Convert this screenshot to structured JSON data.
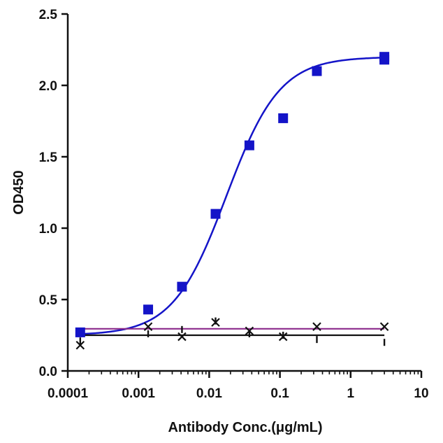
{
  "chart_data": {
    "type": "scatter",
    "title": "",
    "xlabel": "Antibody Conc.(μg/mL)",
    "ylabel": "OD450",
    "x_scale": "log",
    "xlim": [
      0.0001,
      10
    ],
    "ylim": [
      0,
      2.5
    ],
    "x_ticks": [
      0.0001,
      0.001,
      0.01,
      0.1,
      1,
      10
    ],
    "x_tick_labels": [
      "0.0001",
      "0.001",
      "0.01",
      "0.1",
      "1",
      "10"
    ],
    "y_ticks": [
      0,
      0.5,
      1,
      1.5,
      2,
      2.5
    ],
    "y_tick_labels": [
      "0.0",
      "0.5",
      "1.0",
      "1.5",
      "2.0",
      "2.5"
    ],
    "grid": false,
    "legend": "none",
    "series": [
      {
        "marker": "square",
        "color": "#1414c8",
        "fit": "sigmoid",
        "fit_params": {
          "bottom": 0.25,
          "top": 2.2,
          "ec50": 0.0175,
          "hill": 1.15
        },
        "points": [
          {
            "x": 0.00015,
            "y": 0.27
          },
          {
            "x": 0.00137,
            "y": 0.43
          },
          {
            "x": 0.00412,
            "y": 0.59
          },
          {
            "x": 0.0123,
            "y": 1.1
          },
          {
            "x": 0.037,
            "y": 1.58
          },
          {
            "x": 0.111,
            "y": 1.77
          },
          {
            "x": 0.333,
            "y": 2.1
          },
          {
            "x": 3.0,
            "y": 2.2
          },
          {
            "x": 3.0,
            "y": 2.18
          }
        ]
      },
      {
        "marker": "x",
        "color": "#111111",
        "line_color": "#8b2a8b",
        "fit": "flat",
        "fit_value": 0.295,
        "points": [
          {
            "x": 0.00015,
            "y": 0.18
          },
          {
            "x": 0.00137,
            "y": 0.31
          },
          {
            "x": 0.00412,
            "y": 0.24
          },
          {
            "x": 0.0123,
            "y": 0.34
          },
          {
            "x": 0.037,
            "y": 0.28
          },
          {
            "x": 0.111,
            "y": 0.24
          },
          {
            "x": 0.333,
            "y": 0.31
          },
          {
            "x": 3.0,
            "y": 0.31
          }
        ]
      },
      {
        "marker": "tick",
        "color": "#111111",
        "line_color": "#111111",
        "fit": "flat",
        "fit_value": 0.25,
        "points": [
          {
            "x": 0.00015,
            "y": 0.21
          },
          {
            "x": 0.00137,
            "y": 0.26
          },
          {
            "x": 0.00412,
            "y": 0.29
          },
          {
            "x": 0.0123,
            "y": 0.35
          },
          {
            "x": 0.037,
            "y": 0.26
          },
          {
            "x": 0.111,
            "y": 0.25
          },
          {
            "x": 0.333,
            "y": 0.22
          },
          {
            "x": 3.0,
            "y": 0.2
          }
        ]
      }
    ]
  }
}
